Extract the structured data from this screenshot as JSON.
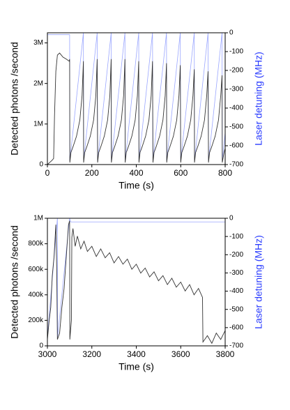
{
  "chart_data": [
    {
      "type": "line",
      "x_label": "Time (s)",
      "y_label": "Detected photons /second",
      "y2_label": "Laser detuning (MHz)",
      "xlim": [
        0,
        800
      ],
      "xticks": [
        0,
        200,
        400,
        600,
        800
      ],
      "ylim": [
        0,
        3250000
      ],
      "yticks": [
        0,
        {
          "value": 1000000,
          "label": "1M"
        },
        {
          "value": 2000000,
          "label": "2M"
        },
        {
          "value": 3000000,
          "label": "3M"
        }
      ],
      "y2lim": [
        -700,
        0
      ],
      "y2ticks": [
        -700,
        -600,
        -500,
        -400,
        -300,
        -200,
        -100,
        0
      ],
      "series": [
        {
          "name": "Detected photons",
          "color": "#333333",
          "x": [
            0,
            10,
            20,
            28,
            32,
            38,
            45,
            55,
            70,
            85,
            98,
            100,
            101,
            106,
            116,
            131,
            146,
            156,
            162,
            163,
            168,
            178,
            193,
            208,
            218,
            224,
            226,
            231,
            241,
            256,
            271,
            281,
            287,
            288,
            293,
            303,
            318,
            333,
            343,
            349,
            350,
            355,
            365,
            380,
            395,
            405,
            411,
            412,
            417,
            427,
            442,
            457,
            467,
            473,
            475,
            480,
            490,
            505,
            520,
            530,
            536,
            537,
            542,
            552,
            567,
            582,
            592,
            598,
            600,
            605,
            615,
            630,
            645,
            655,
            661,
            662,
            667,
            677,
            692,
            707,
            717,
            723,
            725,
            730,
            740,
            755,
            770,
            780,
            786,
            787,
            795,
            800
          ],
          "values": [
            0,
            50000,
            100000,
            150000,
            1200000,
            2300000,
            2700000,
            2750000,
            2650000,
            2600000,
            2550000,
            2600000,
            50000,
            300000,
            450000,
            700000,
            1100000,
            1700000,
            2550000,
            50000,
            300000,
            450000,
            700000,
            1100000,
            1700000,
            2600000,
            50000,
            300000,
            450000,
            700000,
            1100000,
            1700000,
            2600000,
            50000,
            300000,
            450000,
            700000,
            1100000,
            1700000,
            2600000,
            50000,
            300000,
            450000,
            700000,
            1100000,
            1700000,
            2550000,
            50000,
            300000,
            450000,
            700000,
            1100000,
            1700000,
            2550000,
            50000,
            300000,
            450000,
            700000,
            1100000,
            1700000,
            2500000,
            50000,
            300000,
            450000,
            700000,
            1100000,
            1700000,
            2450000,
            50000,
            300000,
            450000,
            700000,
            1100000,
            1700000,
            2350000,
            50000,
            300000,
            450000,
            700000,
            1100000,
            1700000,
            2300000,
            50000,
            300000,
            450000,
            700000,
            1100000,
            1700000,
            2200000,
            50000,
            300000,
            400000
          ]
        },
        {
          "name": "Laser detuning",
          "color": "#9aa6ff",
          "axis": "y2",
          "x": [
            0,
            100,
            101,
            162,
            163,
            224,
            226,
            287,
            288,
            349,
            350,
            411,
            412,
            473,
            475,
            536,
            537,
            598,
            600,
            661,
            662,
            723,
            725,
            786,
            787,
            800
          ],
          "values": [
            -10,
            -10,
            -680,
            0,
            -680,
            0,
            -680,
            0,
            -680,
            0,
            -680,
            0,
            -680,
            0,
            -680,
            0,
            -680,
            0,
            -680,
            0,
            -680,
            0,
            -680,
            0,
            -680,
            -530
          ]
        }
      ]
    },
    {
      "type": "line",
      "x_label": "Time (s)",
      "y_label": "Detected photons /second",
      "y2_label": "Laser detuning (MHz)",
      "xlim": [
        3000,
        3800
      ],
      "xticks": [
        3000,
        3200,
        3400,
        3600,
        3800
      ],
      "ylim": [
        0,
        1000000
      ],
      "yticks": [
        0,
        {
          "value": 200000,
          "label": "200k"
        },
        {
          "value": 400000,
          "label": "400k"
        },
        {
          "value": 600000,
          "label": "600k"
        },
        {
          "value": 800000,
          "label": "800k"
        },
        {
          "value": 1000000,
          "label": "1M"
        }
      ],
      "y2lim": [
        -700,
        0
      ],
      "y2ticks": [
        -700,
        -600,
        -500,
        -400,
        -300,
        -200,
        -100,
        0
      ],
      "series": [
        {
          "name": "Detected photons",
          "color": "#333333",
          "x": [
            3000,
            3008,
            3015,
            3022,
            3030,
            3038,
            3042,
            3045,
            3055,
            3065,
            3075,
            3085,
            3095,
            3100,
            3101,
            3108,
            3110,
            3115,
            3125,
            3135,
            3150,
            3165,
            3180,
            3200,
            3220,
            3240,
            3260,
            3280,
            3300,
            3320,
            3340,
            3360,
            3380,
            3400,
            3420,
            3440,
            3460,
            3480,
            3500,
            3520,
            3540,
            3560,
            3580,
            3600,
            3620,
            3640,
            3660,
            3680,
            3698,
            3700,
            3720,
            3740,
            3760,
            3780,
            3800
          ],
          "values": [
            50000,
            200000,
            300000,
            550000,
            700000,
            950000,
            600000,
            50000,
            100000,
            300000,
            450000,
            700000,
            950000,
            980000,
            50000,
            200000,
            850000,
            920000,
            780000,
            860000,
            760000,
            820000,
            740000,
            780000,
            700000,
            760000,
            690000,
            730000,
            650000,
            700000,
            640000,
            680000,
            600000,
            640000,
            570000,
            610000,
            540000,
            580000,
            510000,
            550000,
            480000,
            530000,
            460000,
            500000,
            430000,
            480000,
            400000,
            450000,
            380000,
            30000,
            80000,
            20000,
            100000,
            50000,
            120000
          ]
        },
        {
          "name": "Laser detuning",
          "color": "#9aa6ff",
          "axis": "y2",
          "x": [
            3000,
            3045,
            3046,
            3100,
            3105,
            3800
          ],
          "values": [
            -650,
            0,
            -650,
            0,
            -20,
            -20
          ]
        }
      ]
    }
  ]
}
